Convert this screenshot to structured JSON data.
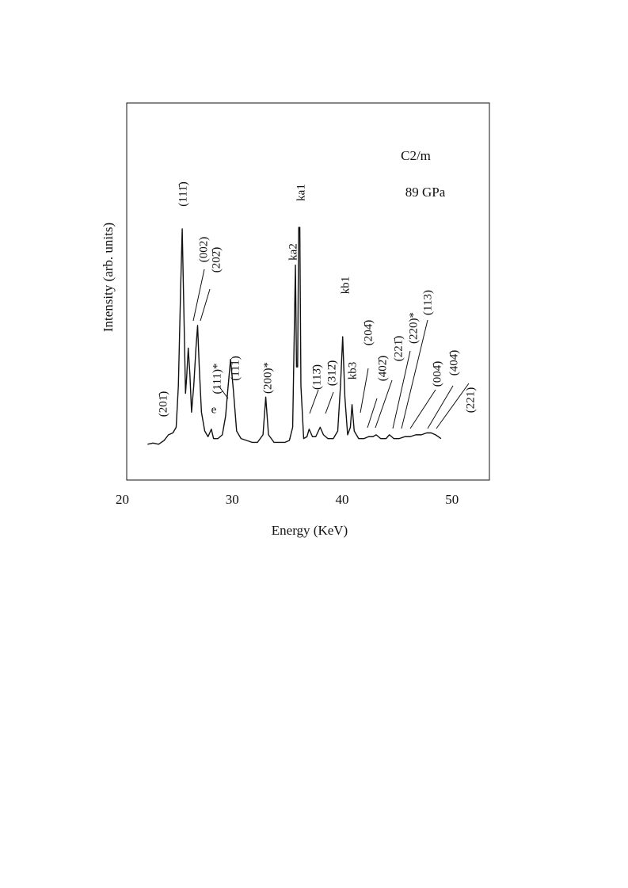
{
  "chart_data": {
    "type": "line",
    "x_label": "Energy (KeV)",
    "y_label": "Intensity (arb. units)",
    "xlim": [
      20.4,
      53.4
    ],
    "xticks": [
      20,
      30,
      40,
      50
    ],
    "ylim": [
      0,
      100
    ],
    "color": "#111111",
    "x": [
      22.3,
      22.8,
      23.3,
      23.8,
      24.2,
      24.6,
      24.9,
      25.1,
      25.3,
      25.45,
      25.6,
      25.75,
      25.85,
      26.0,
      26.15,
      26.3,
      26.5,
      26.7,
      26.85,
      27.0,
      27.2,
      27.5,
      27.8,
      28.1,
      28.3,
      28.7,
      29.1,
      29.4,
      29.6,
      29.85,
      30.1,
      30.4,
      30.8,
      31.3,
      31.8,
      32.3,
      32.8,
      33.05,
      33.3,
      33.8,
      34.3,
      34.8,
      35.2,
      35.5,
      35.65,
      35.75,
      35.85,
      35.95,
      36.05,
      36.15,
      36.25,
      36.5,
      36.8,
      37.0,
      37.3,
      37.6,
      38.0,
      38.3,
      38.7,
      39.2,
      39.6,
      39.85,
      40.05,
      40.25,
      40.5,
      40.75,
      40.9,
      41.1,
      41.5,
      42.0,
      42.4,
      42.8,
      43.1,
      43.5,
      44.0,
      44.3,
      44.7,
      45.2,
      45.7,
      46.2,
      46.7,
      47.2,
      47.7,
      48.1,
      48.5,
      49.0
    ],
    "values": [
      9.5,
      9.8,
      9.5,
      10.5,
      12,
      12.5,
      14,
      25,
      50,
      66.6,
      45,
      23,
      27,
      35,
      28,
      18,
      25,
      35,
      41,
      30,
      18,
      13,
      11.5,
      13.5,
      11,
      11,
      12,
      17,
      24,
      32,
      24,
      13,
      11,
      10.5,
      10,
      10,
      12,
      22,
      12,
      10,
      10,
      10,
      10.5,
      14,
      40,
      57,
      30,
      30,
      67,
      67,
      25,
      11,
      11.5,
      13.5,
      11.5,
      11.5,
      14,
      12,
      11,
      11,
      13,
      25,
      38,
      22,
      12,
      14,
      20,
      13,
      11,
      11,
      11.5,
      11.5,
      12,
      11,
      11,
      12,
      11,
      11,
      11.5,
      11.5,
      12,
      12,
      12.5,
      12.5,
      12,
      11
    ],
    "annotations": [
      "C2/m",
      "89 GPa",
      "(201̄)",
      "(111̄)",
      "(002)",
      "(202̄)",
      "(111)*",
      "e",
      "(111)",
      "(200)*",
      "ka1",
      "ka2",
      "kb1",
      "(113̄)",
      "(312̄)",
      "kb3",
      "(204̄)",
      "(402̄)",
      "(221̄)",
      "(220)*",
      "(113)",
      "(004̄)",
      "(404̄)",
      "(221)"
    ]
  }
}
